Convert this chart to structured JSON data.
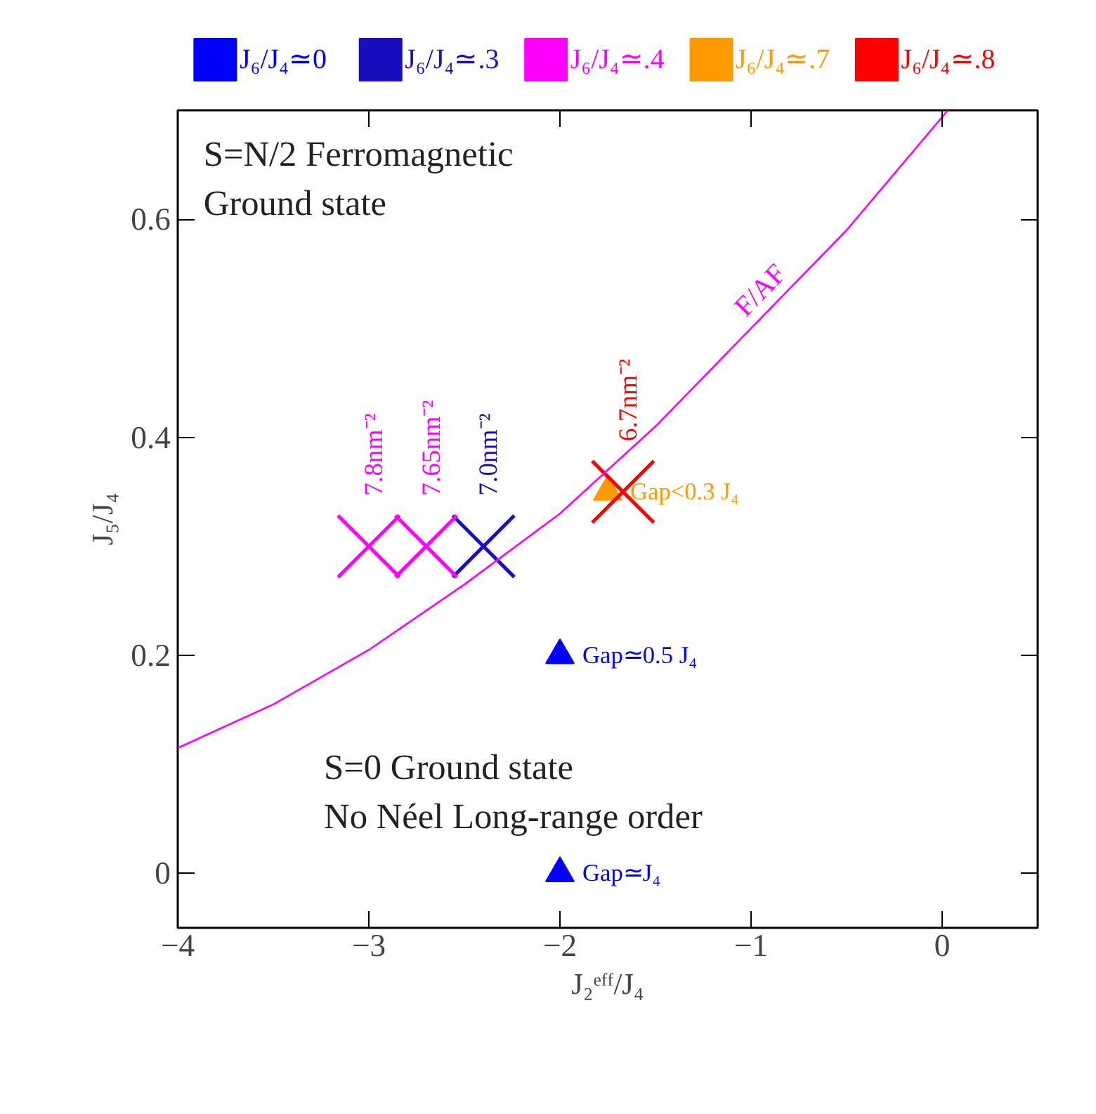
{
  "chart_data": {
    "type": "scatter",
    "xlabel": "J₂ᵉᶠᶠ/J₄",
    "ylabel": "J₅/J₄",
    "xlim": [
      -4,
      0.5
    ],
    "ylim": [
      -0.05,
      0.7
    ],
    "xticks": [
      -4,
      -3,
      -2,
      -1,
      0
    ],
    "yticks": [
      0,
      0.2,
      0.4,
      0.6
    ],
    "grid": false,
    "legend": "top",
    "series": [
      {
        "name": "J₆/J₄≃0",
        "color": "#0000ff",
        "marker": "triangle",
        "x": [
          -2,
          -2
        ],
        "values": [
          0.2,
          0
        ]
      },
      {
        "name": "J₆/J₄≃.3",
        "color": "#1a0fbf",
        "marker": "cross",
        "x": [
          -2.4
        ],
        "values": [
          0.3
        ]
      },
      {
        "name": "J₆/J₄≃.4",
        "color": "#ff00ff",
        "marker": "cross",
        "x": [
          -3.0,
          -2.7
        ],
        "values": [
          0.3,
          0.3
        ]
      },
      {
        "name": "J₆/J₄≃.7",
        "color": "#ff9900",
        "marker": "triangle",
        "x": [
          -1.75
        ],
        "values": [
          0.35
        ]
      },
      {
        "name": "J₆/J₄≃.8",
        "color": "#ff0000",
        "marker": "cross",
        "x": [
          -1.67
        ],
        "values": [
          0.35
        ]
      },
      {
        "name": "F/AF",
        "type": "line",
        "color": "#ff00ff",
        "x": [
          -4,
          -3.5,
          -3,
          -2.5,
          -2,
          -1.5,
          -1,
          -0.5,
          0.03
        ],
        "values": [
          0.115,
          0.155,
          0.205,
          0.265,
          0.33,
          0.41,
          0.5,
          0.59,
          0.7
        ]
      }
    ],
    "annotations": [
      "S=N/2 Ferromagnetic\nGround state",
      "S=0 Ground state\nNo Néel Long-range order",
      {
        "text": "7.8nm⁻²",
        "x": -3.0,
        "y": 0.3
      },
      {
        "text": "7.65nm⁻²",
        "x": -2.7,
        "y": 0.3
      },
      {
        "text": "7.0nm⁻²",
        "x": -2.4,
        "y": 0.3
      },
      {
        "text": "6.7nm⁻²",
        "x": -1.67,
        "y": 0.35
      },
      {
        "text": "Gap<0.3 J₄",
        "x": -1.75,
        "y": 0.35
      },
      {
        "text": "Gap≃0.5 J₄",
        "x": -2,
        "y": 0.2
      },
      {
        "text": "Gap≃J₄",
        "x": -2,
        "y": 0
      }
    ]
  }
}
